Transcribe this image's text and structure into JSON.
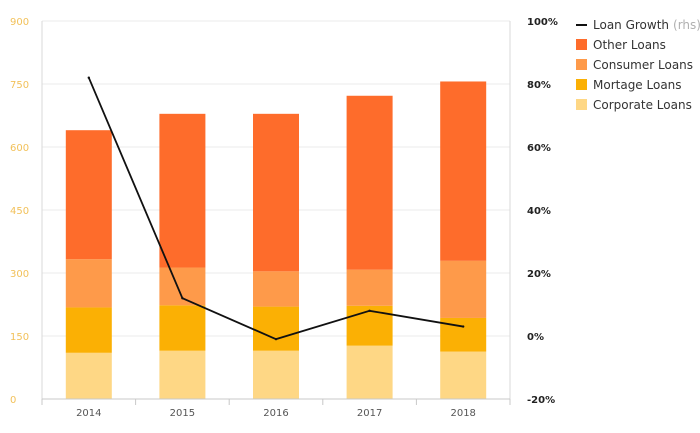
{
  "chart_data": {
    "type": "bar",
    "stacked": true,
    "categories": [
      "2014",
      "2015",
      "2016",
      "2017",
      "2018"
    ],
    "series": [
      {
        "name": "Corporate Loans",
        "color": "#fed785",
        "values": [
          110,
          115,
          115,
          127,
          113
        ]
      },
      {
        "name": "Mortage Loans",
        "color": "#fbb004",
        "values": [
          108,
          108,
          105,
          95,
          80
        ]
      },
      {
        "name": "Consumer Loans",
        "color": "#fe9a4a",
        "values": [
          115,
          90,
          84,
          86,
          136
        ]
      },
      {
        "name": "Other Loans",
        "color": "#fe6c2b",
        "values": [
          307,
          366,
          375,
          414,
          427
        ]
      }
    ],
    "line_series": {
      "name": "Loan Growth",
      "axis_suffix": "(rhs)",
      "color": "#111111",
      "values": [
        82,
        12,
        -1,
        8,
        3
      ]
    },
    "y_left": {
      "min": 0,
      "max": 900,
      "ticks": [
        0,
        150,
        300,
        450,
        600,
        750,
        900
      ],
      "labels": [
        "0",
        "150",
        "300",
        "450",
        "600",
        "750",
        "900"
      ]
    },
    "y_right": {
      "min": -20,
      "max": 100,
      "ticks": [
        -20,
        0,
        20,
        40,
        60,
        80,
        100
      ],
      "labels": [
        "-20%",
        "0%",
        "20%",
        "40%",
        "60%",
        "80%",
        "100%"
      ]
    },
    "grid": true,
    "legend_position": "top-right"
  }
}
